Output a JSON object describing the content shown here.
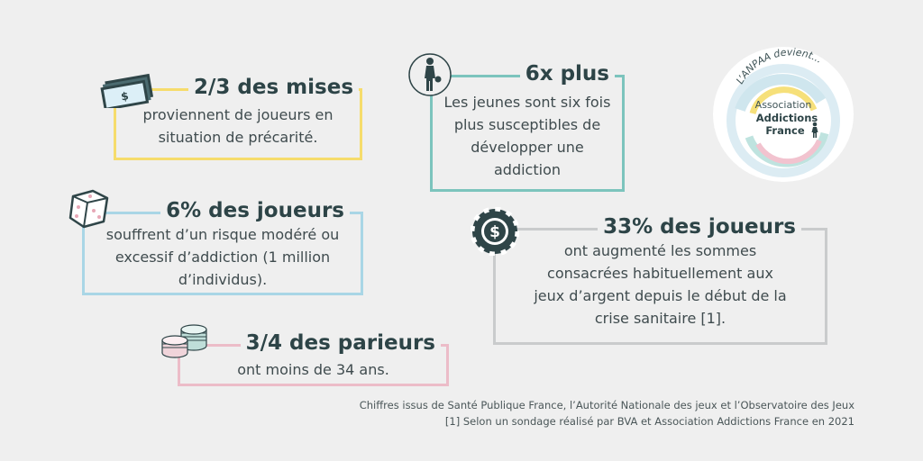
{
  "cards": {
    "mises": {
      "title": "2/3 des mises",
      "body": "proviennent de joueurs en\nsituation de précarité.",
      "color": "#f6dc6c"
    },
    "jeunes": {
      "title": "6x plus",
      "body": "Les jeunes sont six fois\nplus susceptibles de\ndévelopper une\naddiction",
      "color": "#7cc4bd"
    },
    "joueurs": {
      "title": "6% des joueurs",
      "body": "souffrent d’un risque modéré ou\nexcessif d’addiction (1 million\nd’individus).",
      "color": "#a9d6e6"
    },
    "crise": {
      "title": "33% des joueurs",
      "body": "ont augmenté les sommes\nconsacrées habituellement aux\njeux d’argent depuis le début de la\ncrise sanitaire [1].",
      "color": "#c9cbcc"
    },
    "parieurs": {
      "title": "3/4 des parieurs",
      "body": "ont moins de 34 ans.",
      "color": "#ecbcc8"
    }
  },
  "logo": {
    "tagline": "L’ANPAA devient...",
    "line1": "Association",
    "line2": "Addictions",
    "line3": "France"
  },
  "footer": {
    "sources": "Chiffres issus de Santé Publique France, l’Autorité Nationale des jeux et l’Observatoire des Jeux",
    "note": "[1] Selon un sondage réalisé par BVA et Association Addictions France en 2021"
  }
}
